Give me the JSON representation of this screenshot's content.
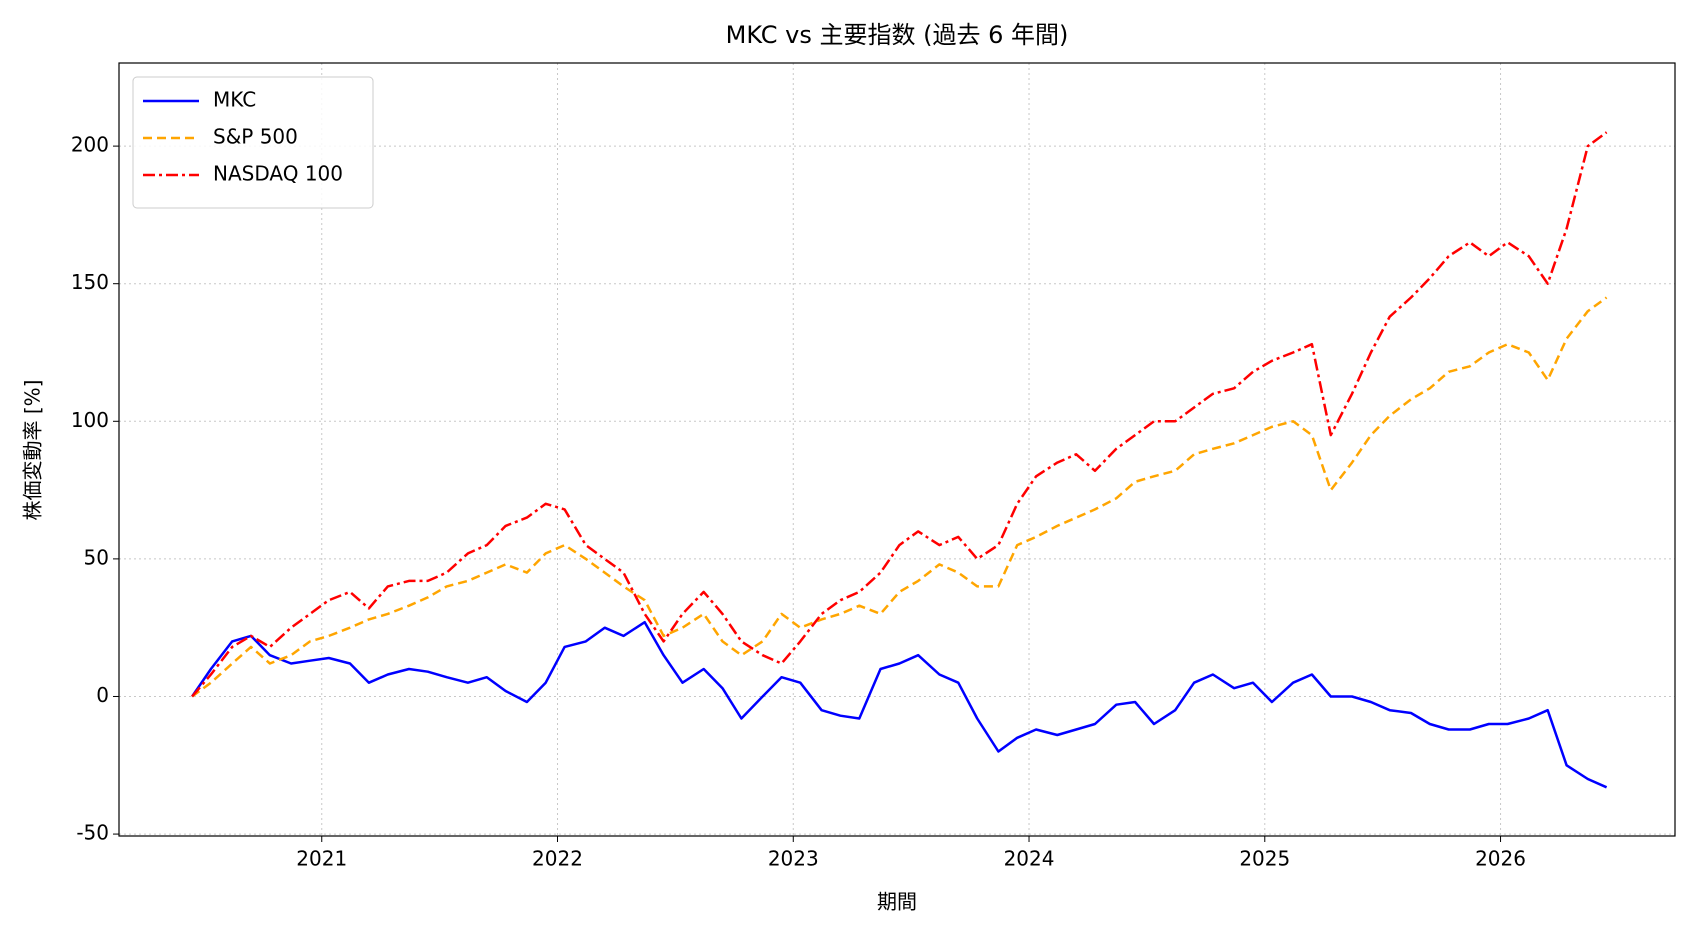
{
  "chart_data": {
    "type": "line",
    "title": "MKC vs 主要指数 (過去 6 年間)",
    "x_label": "期間",
    "y_label": "株価変動率 [%]",
    "x": [
      2020.45,
      2020.53,
      2020.62,
      2020.7,
      2020.78,
      2020.87,
      2020.95,
      2021.03,
      2021.12,
      2021.2,
      2021.28,
      2021.37,
      2021.45,
      2021.53,
      2021.62,
      2021.7,
      2021.78,
      2021.87,
      2021.95,
      2022.03,
      2022.12,
      2022.2,
      2022.28,
      2022.37,
      2022.45,
      2022.53,
      2022.62,
      2022.7,
      2022.78,
      2022.87,
      2022.95,
      2023.03,
      2023.12,
      2023.2,
      2023.28,
      2023.37,
      2023.45,
      2023.53,
      2023.62,
      2023.7,
      2023.78,
      2023.87,
      2023.95,
      2024.03,
      2024.12,
      2024.2,
      2024.28,
      2024.37,
      2024.45,
      2024.53,
      2024.62,
      2024.7,
      2024.78,
      2024.87,
      2024.95,
      2025.03,
      2025.12,
      2025.2,
      2025.28,
      2025.37,
      2025.45,
      2025.53,
      2025.62,
      2025.7,
      2025.78,
      2025.87,
      2025.95,
      2026.03,
      2026.12,
      2026.2,
      2026.28,
      2026.37,
      2026.45
    ],
    "series": [
      {
        "name": "MKC",
        "color": "#0000ff",
        "linestyle": "solid",
        "values": [
          0,
          10,
          20,
          22,
          15,
          12,
          13,
          14,
          12,
          5,
          8,
          10,
          9,
          7,
          5,
          7,
          2,
          -2,
          5,
          18,
          20,
          25,
          22,
          27,
          15,
          5,
          10,
          3,
          -8,
          0,
          7,
          5,
          -5,
          -7,
          -8,
          10,
          12,
          15,
          8,
          5,
          -8,
          -20,
          -15,
          -12,
          -14,
          -12,
          -10,
          -3,
          -2,
          -10,
          -5,
          5,
          8,
          3,
          5,
          -2,
          5,
          8,
          0,
          0,
          -2,
          -5,
          -6,
          -10,
          -12,
          -12,
          -10,
          -10,
          -8,
          -5,
          -25,
          -30,
          -33
        ]
      },
      {
        "name": "S&P 500",
        "color": "#ffa500",
        "linestyle": "dashed",
        "values": [
          0,
          5,
          12,
          18,
          12,
          15,
          20,
          22,
          25,
          28,
          30,
          33,
          36,
          40,
          42,
          45,
          48,
          45,
          52,
          55,
          50,
          45,
          40,
          35,
          22,
          25,
          30,
          20,
          15,
          20,
          30,
          25,
          28,
          30,
          33,
          30,
          38,
          42,
          48,
          45,
          40,
          40,
          55,
          58,
          62,
          65,
          68,
          72,
          78,
          80,
          82,
          88,
          90,
          92,
          95,
          98,
          100,
          95,
          75,
          85,
          95,
          102,
          108,
          112,
          118,
          120,
          125,
          128,
          125,
          115,
          130,
          140,
          145
        ]
      },
      {
        "name": "NASDAQ 100",
        "color": "#ff0000",
        "linestyle": "dashdot",
        "values": [
          0,
          8,
          18,
          22,
          18,
          25,
          30,
          35,
          38,
          32,
          40,
          42,
          42,
          45,
          52,
          55,
          62,
          65,
          70,
          68,
          55,
          50,
          45,
          30,
          20,
          30,
          38,
          30,
          20,
          15,
          12,
          20,
          30,
          35,
          38,
          45,
          55,
          60,
          55,
          58,
          50,
          55,
          70,
          80,
          85,
          88,
          82,
          90,
          95,
          100,
          100,
          105,
          110,
          112,
          118,
          122,
          125,
          128,
          95,
          110,
          125,
          138,
          145,
          152,
          160,
          165,
          160,
          165,
          160,
          150,
          170,
          200,
          205
        ]
      }
    ],
    "xlim": [
      2020.14,
      2026.74
    ],
    "xticks": [
      2021,
      2022,
      2023,
      2024,
      2025,
      2026
    ],
    "ylim": [
      -50.7,
      230.2
    ],
    "yticks": [
      -50,
      0,
      50,
      100,
      150,
      200
    ],
    "grid": true,
    "legend": "upper-left"
  }
}
